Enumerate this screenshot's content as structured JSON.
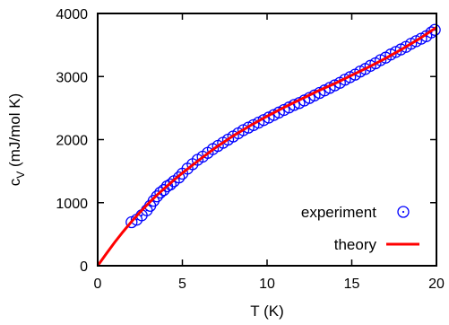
{
  "chart_data": {
    "type": "scatter",
    "xlabel": "T (K)",
    "ylabel_main": "c",
    "ylabel_sub": "V",
    "ylabel_rest": " (mJ/mol K)",
    "xlim": [
      0,
      20
    ],
    "ylim": [
      0,
      4000
    ],
    "x_ticks": [
      0,
      5,
      10,
      15,
      20
    ],
    "y_ticks": [
      0,
      1000,
      2000,
      3000,
      4000
    ],
    "grid": false,
    "legend_position": "bottom-right",
    "series": [
      {
        "name": "experiment",
        "kind": "points",
        "marker": "open-circle-dot",
        "color": "#0000ff",
        "points": [
          [
            2.0,
            690
          ],
          [
            2.3,
            730
          ],
          [
            2.6,
            800
          ],
          [
            2.9,
            880
          ],
          [
            3.1,
            950
          ],
          [
            3.3,
            1030
          ],
          [
            3.5,
            1100
          ],
          [
            3.7,
            1160
          ],
          [
            3.9,
            1200
          ],
          [
            4.1,
            1260
          ],
          [
            4.3,
            1290
          ],
          [
            4.5,
            1340
          ],
          [
            4.8,
            1400
          ],
          [
            5.0,
            1460
          ],
          [
            5.3,
            1540
          ],
          [
            5.6,
            1610
          ],
          [
            5.9,
            1680
          ],
          [
            6.2,
            1730
          ],
          [
            6.5,
            1790
          ],
          [
            6.8,
            1850
          ],
          [
            7.1,
            1900
          ],
          [
            7.4,
            1950
          ],
          [
            7.7,
            2000
          ],
          [
            8.0,
            2050
          ],
          [
            8.3,
            2100
          ],
          [
            8.6,
            2150
          ],
          [
            8.9,
            2190
          ],
          [
            9.2,
            2230
          ],
          [
            9.5,
            2270
          ],
          [
            9.8,
            2310
          ],
          [
            10.1,
            2350
          ],
          [
            10.4,
            2390
          ],
          [
            10.7,
            2430
          ],
          [
            11.0,
            2470
          ],
          [
            11.3,
            2510
          ],
          [
            11.6,
            2550
          ],
          [
            11.9,
            2580
          ],
          [
            12.2,
            2620
          ],
          [
            12.5,
            2660
          ],
          [
            12.8,
            2700
          ],
          [
            13.1,
            2740
          ],
          [
            13.4,
            2780
          ],
          [
            13.7,
            2820
          ],
          [
            14.0,
            2860
          ],
          [
            14.3,
            2900
          ],
          [
            14.6,
            2950
          ],
          [
            14.9,
            2990
          ],
          [
            15.2,
            3030
          ],
          [
            15.5,
            3080
          ],
          [
            15.8,
            3120
          ],
          [
            16.1,
            3170
          ],
          [
            16.4,
            3210
          ],
          [
            16.7,
            3260
          ],
          [
            17.0,
            3300
          ],
          [
            17.3,
            3350
          ],
          [
            17.6,
            3390
          ],
          [
            17.9,
            3430
          ],
          [
            18.2,
            3470
          ],
          [
            18.5,
            3520
          ],
          [
            18.8,
            3560
          ],
          [
            19.1,
            3600
          ],
          [
            19.4,
            3640
          ],
          [
            19.7,
            3700
          ],
          [
            19.9,
            3740
          ]
        ]
      },
      {
        "name": "theory",
        "kind": "line",
        "color": "#ff0000",
        "points": [
          [
            0,
            0
          ],
          [
            0.5,
            190
          ],
          [
            1.0,
            370
          ],
          [
            1.5,
            540
          ],
          [
            2.0,
            700
          ],
          [
            2.5,
            850
          ],
          [
            3.0,
            990
          ],
          [
            3.5,
            1120
          ],
          [
            4.0,
            1240
          ],
          [
            4.5,
            1360
          ],
          [
            5.0,
            1470
          ],
          [
            6.0,
            1680
          ],
          [
            7.0,
            1880
          ],
          [
            8.0,
            2060
          ],
          [
            9.0,
            2220
          ],
          [
            10.0,
            2370
          ],
          [
            11.0,
            2510
          ],
          [
            12.0,
            2640
          ],
          [
            13.0,
            2770
          ],
          [
            14.0,
            2890
          ],
          [
            15.0,
            3020
          ],
          [
            16.0,
            3150
          ],
          [
            17.0,
            3290
          ],
          [
            18.0,
            3440
          ],
          [
            19.0,
            3600
          ],
          [
            20.0,
            3780
          ]
        ]
      }
    ]
  }
}
